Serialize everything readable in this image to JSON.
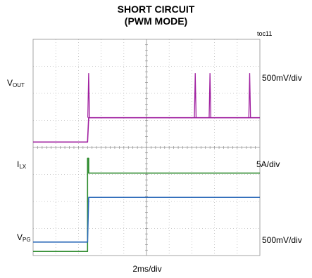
{
  "chart_data": {
    "type": "line",
    "title": "SHORT CIRCUIT",
    "subtitle": "(PWM MODE)",
    "figure_id": "toc11",
    "xlabel": "2ms/div",
    "x_divisions": 10,
    "y_divisions": 8,
    "grid": true,
    "channels": [
      {
        "name_main": "V",
        "name_sub": "OUT",
        "scale": "500mV/div",
        "color": "#2e8b2e",
        "points": [
          [
            0,
            0.15
          ],
          [
            2.4,
            0.15
          ],
          [
            2.4,
            3.6
          ],
          [
            2.45,
            3.6
          ],
          [
            2.45,
            3.05
          ],
          [
            10,
            3.05
          ]
        ]
      },
      {
        "name_main": "I",
        "name_sub": "LX",
        "scale": "5A/div",
        "color": "#a020a0",
        "points": [
          [
            0,
            4.2
          ],
          [
            2.4,
            4.2
          ],
          [
            2.45,
            5.1
          ],
          [
            10,
            5.1
          ]
        ],
        "spikes_x": [
          2.45,
          7.15,
          7.8,
          9.55
        ]
      },
      {
        "name_main": "V",
        "name_sub": "PG",
        "scale": "500mV/div",
        "color": "#2868b8",
        "points": [
          [
            0,
            0.5
          ],
          [
            2.4,
            0.5
          ],
          [
            2.45,
            2.15
          ],
          [
            10,
            2.15
          ]
        ]
      }
    ]
  }
}
